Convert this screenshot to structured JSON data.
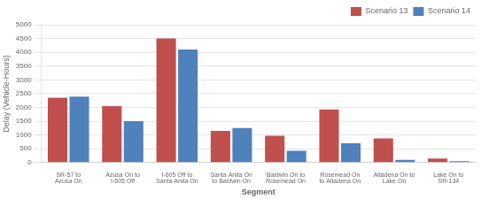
{
  "chart_data": {
    "type": "bar",
    "xlabel": "Segment",
    "ylabel": "Delay (Vehicle-Hours)",
    "categories": [
      "SR-57 to\nAzusa On",
      "Azusa On to\nI-605 Off",
      "I-605 Off to\nSanta Anita On",
      "Santa Anita On\nto Baldwin On",
      "Baldwin On to\nRosemead On",
      "Rosemead On\nto Altadena On",
      "Altadena On to\nLake On",
      "Lake On to\nSR-134"
    ],
    "series": [
      {
        "name": "Scenario 13",
        "color": "#C0504D",
        "values": [
          2350,
          2050,
          4500,
          1150,
          975,
          1925,
          875,
          150
        ]
      },
      {
        "name": "Scenario 14",
        "color": "#4F81BD",
        "values": [
          2390,
          1500,
          4100,
          1250,
          425,
          700,
          100,
          50
        ]
      }
    ],
    "ylim": [
      0,
      5000
    ],
    "yticks": [
      0,
      500,
      1000,
      1500,
      2000,
      2500,
      3000,
      3500,
      4000,
      4500,
      5000
    ],
    "grid": true,
    "legend": "upper right"
  }
}
